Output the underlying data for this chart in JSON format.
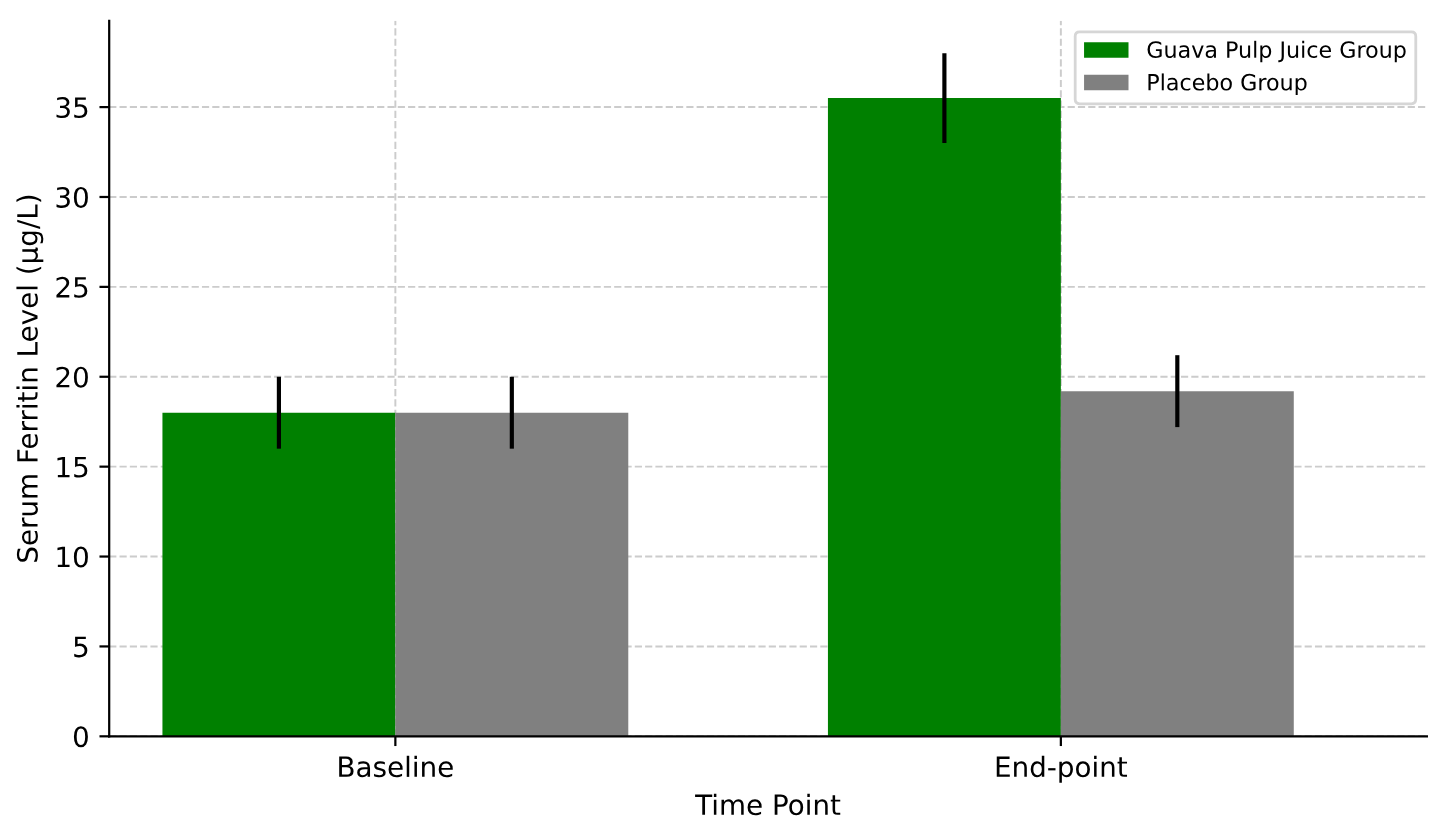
{
  "chart_data": {
    "type": "bar",
    "xlabel": "Time Point",
    "ylabel": "Serum Ferritin Level (µg/L)",
    "categories": [
      "Baseline",
      "End-point"
    ],
    "series": [
      {
        "name": "Guava Pulp Juice Group",
        "color": "#008000",
        "values": [
          18,
          35.5
        ],
        "errors": [
          2,
          2.5
        ]
      },
      {
        "name": "Placebo Group",
        "color": "#808080",
        "values": [
          18,
          19.2
        ],
        "errors": [
          2,
          2
        ]
      }
    ],
    "ylim": [
      0,
      39.8
    ],
    "yticks": [
      0,
      5,
      10,
      15,
      20,
      25,
      30,
      35
    ],
    "grid": true,
    "legend": "top right"
  }
}
